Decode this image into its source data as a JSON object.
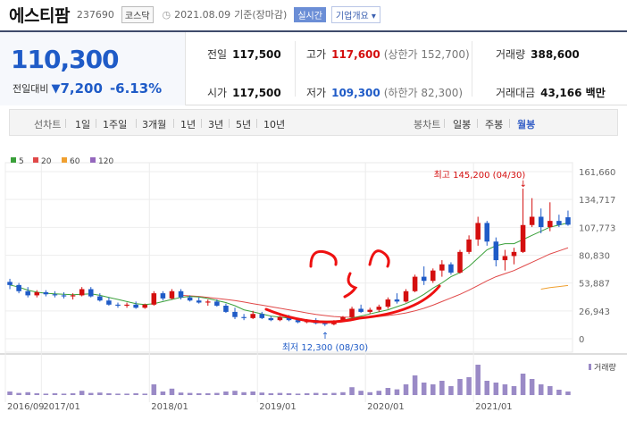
{
  "stock": {
    "name": "에스티팜",
    "code": "237690",
    "market": "코스닥",
    "date": "2021.08.09",
    "status": "기준(장마감)",
    "realtime_badge": "실시간",
    "overview_button": "기업개요 ▾"
  },
  "price": {
    "current": "110,300",
    "change_label": "전일대비",
    "change_arrow": "▼",
    "change_amount": "7,200",
    "change_percent": "-6.13%"
  },
  "stats": {
    "prev_close_label": "전일",
    "prev_close": "117,500",
    "high_label": "고가",
    "high": "117,600",
    "upper_limit": "(상한가 152,700)",
    "volume_label": "거래량",
    "volume": "388,600",
    "open_label": "시가",
    "open": "117,500",
    "low_label": "저가",
    "low": "109,300",
    "lower_limit": "(하한가 82,300)",
    "amount_label": "거래대금",
    "amount": "43,166 백만"
  },
  "line_tabs": {
    "title": "선차트",
    "items": [
      "1일",
      "1주일",
      "3개월",
      "1년",
      "3년",
      "5년",
      "10년"
    ]
  },
  "candle_tabs": {
    "title": "봉차트",
    "items": [
      "일봉",
      "주봉",
      "월봉"
    ],
    "selected": "월봉"
  },
  "colors": {
    "up": "#d40f0f",
    "down": "#1f5bc7",
    "ma5": "#3aa03a",
    "ma20": "#e04848",
    "ma60": "#f0a030",
    "ma120": "#9467bd",
    "volume": "#9a8ac6"
  },
  "chart_data": {
    "type": "candlestick",
    "legend": [
      {
        "name": "5",
        "color": "#3aa03a"
      },
      {
        "name": "20",
        "color": "#e04848"
      },
      {
        "name": "60",
        "color": "#f0a030"
      },
      {
        "name": "120",
        "color": "#9467bd"
      }
    ],
    "y_ticks": [
      "161,660",
      "134,717",
      "107,773",
      "80,830",
      "53,887",
      "26,943",
      "0"
    ],
    "y_tick_values": [
      161660,
      134717,
      107773,
      80830,
      53887,
      26943,
      0
    ],
    "ylim": [
      0,
      161660
    ],
    "x_labels": [
      "2016/09",
      "2017/01",
      "2018/01",
      "2019/01",
      "2020/01",
      "2021/01"
    ],
    "max_annotation": "최고 145,200 (04/30)",
    "min_annotation": "최저 12,300 (08/30)",
    "volume_label": "거래량",
    "candles": [
      [
        55000,
        58000,
        48000,
        52000
      ],
      [
        52000,
        54000,
        44000,
        46000
      ],
      [
        46000,
        50000,
        40000,
        42000
      ],
      [
        42000,
        47000,
        40000,
        45000
      ],
      [
        45000,
        47000,
        41000,
        43000
      ],
      [
        43000,
        46000,
        40000,
        42000
      ],
      [
        42000,
        45000,
        39000,
        41000
      ],
      [
        41000,
        44000,
        38000,
        42000
      ],
      [
        42000,
        50000,
        41000,
        48000
      ],
      [
        48000,
        50000,
        40000,
        41000
      ],
      [
        41000,
        44000,
        36000,
        37000
      ],
      [
        37000,
        40000,
        32000,
        33000
      ],
      [
        33000,
        35000,
        30000,
        32000
      ],
      [
        32000,
        35000,
        30000,
        33000
      ],
      [
        33000,
        36000,
        29000,
        30000
      ],
      [
        30000,
        34000,
        29000,
        33000
      ],
      [
        33000,
        46000,
        32000,
        44000
      ],
      [
        44000,
        46000,
        37000,
        39000
      ],
      [
        39000,
        48000,
        38000,
        46000
      ],
      [
        46000,
        48000,
        38000,
        40000
      ],
      [
        40000,
        42000,
        36000,
        37000
      ],
      [
        37000,
        40000,
        34000,
        35000
      ],
      [
        35000,
        38000,
        32000,
        36000
      ],
      [
        36000,
        38000,
        31000,
        32000
      ],
      [
        32000,
        34000,
        25000,
        26000
      ],
      [
        26000,
        30000,
        19000,
        21000
      ],
      [
        21000,
        24000,
        18000,
        20000
      ],
      [
        20000,
        27000,
        19000,
        24000
      ],
      [
        24000,
        26000,
        19000,
        20000
      ],
      [
        20000,
        22000,
        17000,
        18000
      ],
      [
        18000,
        22000,
        17000,
        21000
      ],
      [
        21000,
        23000,
        17000,
        18000
      ],
      [
        18000,
        20000,
        15000,
        16000
      ],
      [
        16000,
        19000,
        15000,
        18000
      ],
      [
        18000,
        20000,
        14000,
        15000
      ],
      [
        15000,
        17000,
        12300,
        14000
      ],
      [
        14000,
        18000,
        13000,
        17000
      ],
      [
        17000,
        22000,
        16000,
        21000
      ],
      [
        21000,
        31000,
        20000,
        29000
      ],
      [
        29000,
        33000,
        25000,
        26000
      ],
      [
        26000,
        30000,
        24000,
        28000
      ],
      [
        28000,
        33000,
        26000,
        31000
      ],
      [
        31000,
        40000,
        29000,
        38000
      ],
      [
        38000,
        44000,
        34000,
        36000
      ],
      [
        36000,
        48000,
        35000,
        46000
      ],
      [
        46000,
        62000,
        45000,
        60000
      ],
      [
        60000,
        70000,
        52000,
        56000
      ],
      [
        56000,
        68000,
        54000,
        66000
      ],
      [
        66000,
        76000,
        60000,
        72000
      ],
      [
        72000,
        74000,
        62000,
        64000
      ],
      [
        64000,
        86000,
        63000,
        84000
      ],
      [
        84000,
        100000,
        82000,
        96000
      ],
      [
        96000,
        118000,
        90000,
        112000
      ],
      [
        112000,
        114000,
        90000,
        94000
      ],
      [
        94000,
        98000,
        70000,
        76000
      ],
      [
        76000,
        86000,
        66000,
        80000
      ],
      [
        80000,
        88000,
        72000,
        84000
      ],
      [
        84000,
        145200,
        83000,
        110000
      ],
      [
        110000,
        136000,
        108000,
        118000
      ],
      [
        118000,
        126000,
        102000,
        108000
      ],
      [
        108000,
        132000,
        104000,
        114000
      ],
      [
        114000,
        120000,
        108000,
        110000
      ],
      [
        117500,
        124000,
        109300,
        110300
      ]
    ],
    "ma5": [
      52000,
      50000,
      47000,
      45000,
      44000,
      43500,
      43000,
      42500,
      43000,
      43500,
      42000,
      40000,
      38000,
      36000,
      34000,
      33000,
      34000,
      36000,
      38000,
      40000,
      41000,
      40500,
      39000,
      37000,
      35000,
      32000,
      28000,
      26000,
      24000,
      22000,
      21000,
      20000,
      19000,
      18000,
      17500,
      17000,
      17000,
      18000,
      20000,
      22000,
      24000,
      26000,
      28000,
      31000,
      34000,
      38000,
      43000,
      49000,
      54000,
      60000,
      64000,
      70000,
      78000,
      86000,
      90000,
      92000,
      92000,
      96000,
      100000,
      104000,
      108000,
      110000,
      112000
    ],
    "ma20": [
      null,
      null,
      null,
      null,
      null,
      null,
      null,
      null,
      null,
      null,
      null,
      null,
      null,
      null,
      null,
      null,
      null,
      null,
      null,
      42000,
      41500,
      41000,
      40000,
      39000,
      38000,
      37000,
      35500,
      34000,
      32500,
      31000,
      29500,
      28000,
      26500,
      25000,
      23500,
      22500,
      21500,
      21000,
      20800,
      20800,
      21000,
      21500,
      22500,
      23500,
      25000,
      27000,
      29500,
      32500,
      36000,
      39500,
      43000,
      47000,
      51500,
      56000,
      60000,
      63000,
      66000,
      70000,
      74000,
      78000,
      82000,
      85000,
      88000
    ],
    "ma60": [
      null,
      null,
      null,
      null,
      null,
      null,
      null,
      null,
      null,
      null,
      null,
      null,
      null,
      null,
      null,
      null,
      null,
      null,
      null,
      null,
      null,
      null,
      null,
      null,
      null,
      null,
      null,
      null,
      null,
      null,
      null,
      null,
      null,
      null,
      null,
      null,
      null,
      null,
      null,
      null,
      null,
      null,
      null,
      null,
      null,
      null,
      null,
      null,
      null,
      null,
      null,
      null,
      null,
      null,
      null,
      null,
      null,
      null,
      null,
      48000,
      49500,
      50500,
      51500
    ],
    "volume": [
      0.1,
      0.06,
      0.08,
      0.05,
      0.04,
      0.05,
      0.04,
      0.05,
      0.12,
      0.06,
      0.07,
      0.05,
      0.04,
      0.04,
      0.05,
      0.04,
      0.3,
      0.1,
      0.18,
      0.07,
      0.06,
      0.05,
      0.05,
      0.06,
      0.1,
      0.12,
      0.08,
      0.1,
      0.07,
      0.05,
      0.06,
      0.05,
      0.04,
      0.05,
      0.06,
      0.05,
      0.06,
      0.08,
      0.22,
      0.12,
      0.08,
      0.12,
      0.2,
      0.16,
      0.3,
      0.55,
      0.35,
      0.3,
      0.4,
      0.25,
      0.45,
      0.5,
      0.85,
      0.4,
      0.35,
      0.3,
      0.25,
      0.6,
      0.45,
      0.3,
      0.25,
      0.15,
      0.1
    ]
  }
}
